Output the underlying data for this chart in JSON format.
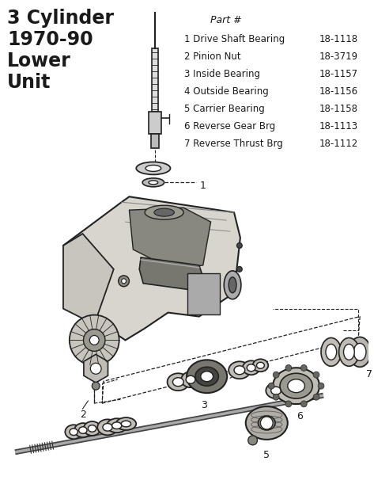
{
  "title": "3 Cylinder\n1970-90\nLower\nUnit",
  "part_header": "Part #",
  "parts": [
    {
      "num": "1",
      "name": "Drive Shaft Bearing",
      "part": "18-1118"
    },
    {
      "num": "2",
      "name": "Pinion Nut",
      "part": "18-3719"
    },
    {
      "num": "3",
      "name": "Inside Bearing",
      "part": "18-1157"
    },
    {
      "num": "4",
      "name": "Outside Bearing",
      "part": "18-1156"
    },
    {
      "num": "5",
      "name": "Carrier Bearing",
      "part": "18-1158"
    },
    {
      "num": "6",
      "name": "Reverse Gear Brg",
      "part": "18-1113"
    },
    {
      "num": "7",
      "name": "Reverse Thrust Brg",
      "part": "18-1112"
    }
  ],
  "bg_color": "#ffffff",
  "text_color": "#1a1a1a",
  "fig_width": 4.73,
  "fig_height": 6.11,
  "dpi": 100
}
